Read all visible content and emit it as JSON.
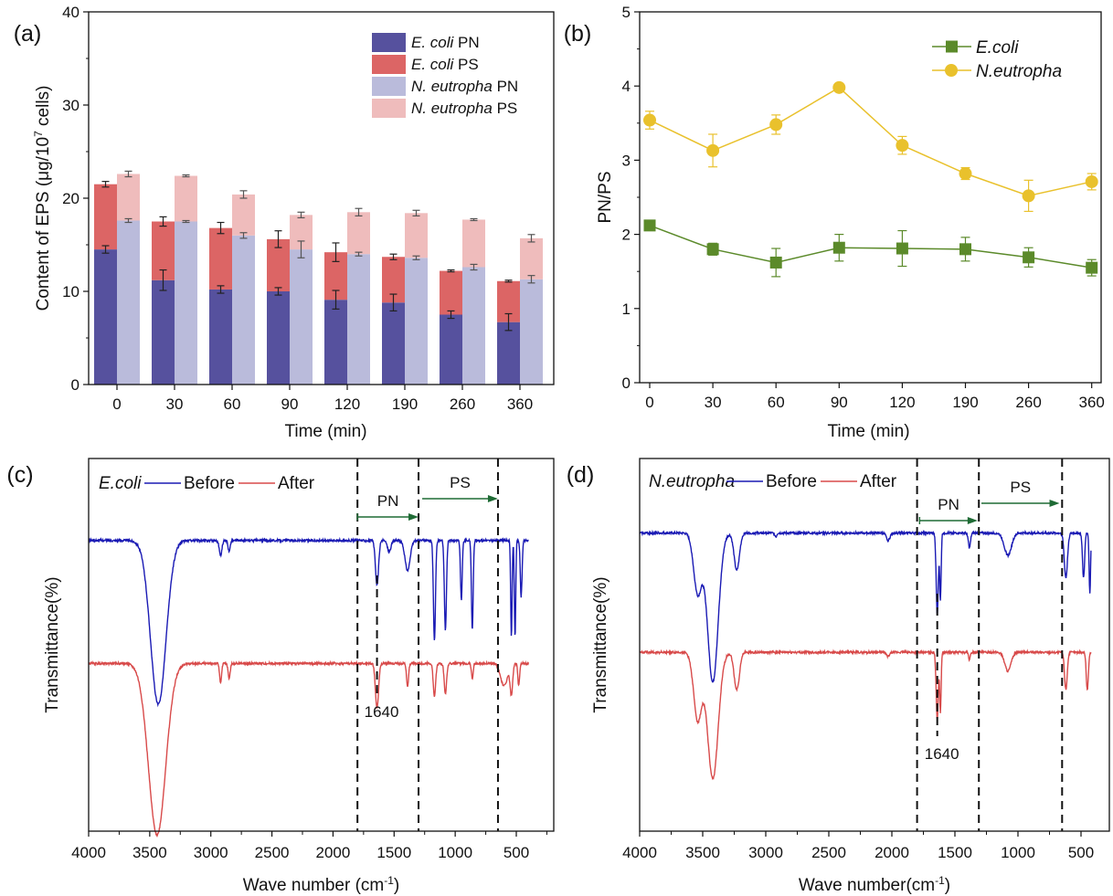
{
  "chart_data": [
    {
      "id": "a",
      "panel_label": "(a)",
      "type": "bar",
      "stacked": true,
      "title": "",
      "xlabel": "Time (min)",
      "ylabel_prefix": "Content of EPS (μg/10",
      "ylabel_sup": "7",
      "ylabel_suffix": " cells)",
      "ylim": [
        0,
        40
      ],
      "yticks": [
        0,
        10,
        20,
        30,
        40
      ],
      "categories": [
        "0",
        "30",
        "60",
        "90",
        "120",
        "190",
        "260",
        "360"
      ],
      "legend_position": "top-right",
      "groups": [
        {
          "name": "E. coli",
          "stack": [
            {
              "name": "E. coli PN",
              "species": "E. coli",
              "component": "PN",
              "color": "#56519e",
              "values": [
                14.5,
                11.2,
                10.2,
                10.0,
                9.1,
                8.8,
                7.5,
                6.7
              ],
              "errors": [
                0.4,
                1.1,
                0.4,
                0.4,
                1.0,
                0.9,
                0.4,
                0.9
              ]
            },
            {
              "name": "E. coli PS",
              "species": "E. coli",
              "component": "PS",
              "color": "#dc6565",
              "values": [
                7.0,
                6.3,
                6.6,
                5.6,
                5.1,
                4.9,
                4.7,
                4.4
              ],
              "errors": [
                0.3,
                0.5,
                0.6,
                0.9,
                1.0,
                0.3,
                0.1,
                0.1
              ]
            }
          ]
        },
        {
          "name": "N. eutropha",
          "stack": [
            {
              "name": "N. eutropha PN",
              "species": "N. eutropha",
              "component": "PN",
              "color": "#babbdb",
              "values": [
                17.6,
                17.5,
                16.0,
                14.5,
                14.0,
                13.6,
                12.6,
                11.3
              ],
              "errors": [
                0.2,
                0.1,
                0.3,
                0.9,
                0.2,
                0.2,
                0.3,
                0.4
              ]
            },
            {
              "name": "N. eutropha PS",
              "species": "N. eutropha",
              "component": "PS",
              "color": "#efbcbc",
              "values": [
                5.0,
                4.9,
                4.4,
                3.7,
                4.5,
                4.8,
                5.1,
                4.4
              ],
              "errors": [
                0.3,
                0.1,
                0.4,
                0.3,
                0.4,
                0.3,
                0.1,
                0.4
              ]
            }
          ]
        }
      ]
    },
    {
      "id": "b",
      "panel_label": "(b)",
      "type": "line",
      "title": "",
      "xlabel": "Time (min)",
      "ylabel": "PN/PS",
      "ylim": [
        0,
        5
      ],
      "yticks": [
        0,
        1,
        2,
        3,
        4,
        5
      ],
      "categories": [
        "0",
        "30",
        "60",
        "90",
        "120",
        "190",
        "260",
        "360"
      ],
      "legend_position": "top-right",
      "series": [
        {
          "name": "E.coli",
          "marker": "square",
          "color": "#5b8a2a",
          "values": [
            2.12,
            1.8,
            1.62,
            1.82,
            1.81,
            1.8,
            1.69,
            1.55
          ],
          "errors": [
            0.05,
            0.08,
            0.19,
            0.18,
            0.24,
            0.16,
            0.13,
            0.11
          ]
        },
        {
          "name": "N.eutropha",
          "marker": "circle",
          "color": "#e9c12c",
          "values": [
            3.54,
            3.13,
            3.48,
            3.98,
            3.2,
            2.82,
            2.52,
            2.71
          ],
          "errors": [
            0.12,
            0.22,
            0.13,
            0.03,
            0.12,
            0.08,
            0.21,
            0.11
          ]
        }
      ]
    },
    {
      "id": "c",
      "panel_label": "(c)",
      "type": "line",
      "title": "",
      "xlabel_prefix": "Wave number (cm",
      "xlabel_sup": "-1",
      "xlabel_suffix": ")",
      "ylabel": "Transmittance(%)",
      "xlim": [
        4000,
        400
      ],
      "xticks": [
        4000,
        3500,
        3000,
        2500,
        2000,
        1500,
        1000,
        500
      ],
      "legend_position": "top-left",
      "legend_title": "E.coli",
      "series": [
        {
          "name": "Before",
          "color": "#1a1ab4",
          "offset": 0.78,
          "peaks": [
            [
              3430,
              0.44,
              90
            ],
            [
              2920,
              0.04,
              15
            ],
            [
              2850,
              0.03,
              12
            ],
            [
              1640,
              0.12,
              18
            ],
            [
              1540,
              0.03,
              20
            ],
            [
              1390,
              0.08,
              30
            ],
            [
              1170,
              0.27,
              12
            ],
            [
              1080,
              0.24,
              12
            ],
            [
              950,
              0.16,
              10
            ],
            [
              860,
              0.24,
              10
            ],
            [
              540,
              0.26,
              8
            ],
            [
              510,
              0.26,
              8
            ],
            [
              460,
              0.15,
              10
            ]
          ]
        },
        {
          "name": "After",
          "color": "#d84a4a",
          "offset": 0.45,
          "peaks": [
            [
              3440,
              0.46,
              100
            ],
            [
              2920,
              0.05,
              12
            ],
            [
              2850,
              0.04,
              12
            ],
            [
              1640,
              0.12,
              18
            ],
            [
              1390,
              0.06,
              12
            ],
            [
              1170,
              0.09,
              14
            ],
            [
              1080,
              0.08,
              14
            ],
            [
              860,
              0.04,
              10
            ],
            [
              600,
              0.06,
              40
            ],
            [
              540,
              0.08,
              15
            ],
            [
              480,
              0.06,
              10
            ]
          ]
        }
      ],
      "annotations": [
        {
          "type": "vline",
          "x": 1800,
          "style": "dashed"
        },
        {
          "type": "vline",
          "x": 1300,
          "style": "dashed"
        },
        {
          "type": "vline",
          "x": 650,
          "style": "dashed"
        },
        {
          "type": "vline-short",
          "x": 1640,
          "style": "dashed",
          "label": "1640"
        },
        {
          "type": "arrow",
          "from": 1800,
          "to": 1300,
          "label": "PN",
          "color": "#1f6b35"
        },
        {
          "type": "arrow",
          "from": 1270,
          "to": 650,
          "label": "PS",
          "color": "#1f6b35"
        }
      ]
    },
    {
      "id": "d",
      "panel_label": "(d)",
      "type": "line",
      "title": "",
      "xlabel_prefix": "Wave number(cm",
      "xlabel_sup": "-1",
      "xlabel_suffix": ")",
      "ylabel": "Transmittance(%)",
      "xlim": [
        4000,
        420
      ],
      "xticks": [
        4000,
        3500,
        3000,
        2500,
        2000,
        1500,
        1000,
        500
      ],
      "legend_position": "top-left",
      "legend_title": "N.eutropha",
      "series": [
        {
          "name": "Before",
          "color": "#1a1ab4",
          "offset": 0.8,
          "peaks": [
            [
              3540,
              0.16,
              45
            ],
            [
              3420,
              0.4,
              60
            ],
            [
              3230,
              0.1,
              30
            ],
            [
              2920,
              0.01,
              10
            ],
            [
              2030,
              0.02,
              20
            ],
            [
              1640,
              0.22,
              12
            ],
            [
              1615,
              0.18,
              8
            ],
            [
              1385,
              0.04,
              12
            ],
            [
              1080,
              0.06,
              40
            ],
            [
              620,
              0.12,
              18
            ],
            [
              480,
              0.12,
              12
            ],
            [
              430,
              0.16,
              8
            ]
          ]
        },
        {
          "name": "After",
          "color": "#d84a4a",
          "offset": 0.48,
          "peaks": [
            [
              3540,
              0.18,
              45
            ],
            [
              3420,
              0.34,
              60
            ],
            [
              3230,
              0.1,
              30
            ],
            [
              2030,
              0.01,
              20
            ],
            [
              1640,
              0.18,
              12
            ],
            [
              1615,
              0.16,
              8
            ],
            [
              1385,
              0.02,
              10
            ],
            [
              1080,
              0.05,
              35
            ],
            [
              620,
              0.1,
              15
            ],
            [
              450,
              0.1,
              12
            ]
          ]
        }
      ],
      "annotations": [
        {
          "type": "vline",
          "x": 1800,
          "style": "dashed"
        },
        {
          "type": "vline",
          "x": 1310,
          "style": "dashed"
        },
        {
          "type": "vline",
          "x": 650,
          "style": "dashed"
        },
        {
          "type": "vline-short",
          "x": 1640,
          "style": "dashed",
          "label": "1640"
        },
        {
          "type": "arrow",
          "from": 1780,
          "to": 1320,
          "label": "PN",
          "color": "#1f6b35"
        },
        {
          "type": "arrow",
          "from": 1290,
          "to": 670,
          "label": "PS",
          "color": "#1f6b35"
        }
      ]
    }
  ]
}
